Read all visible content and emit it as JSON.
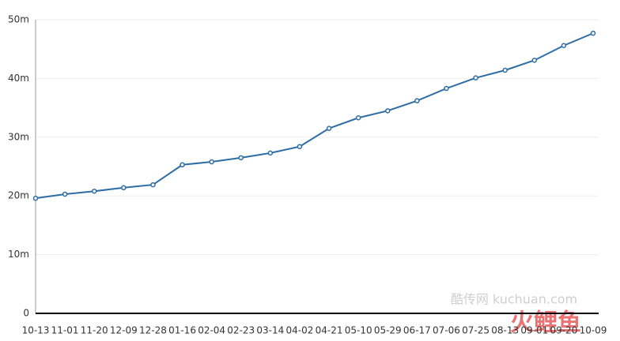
{
  "chart_data": {
    "type": "line",
    "categories": [
      "10-13",
      "11-01",
      "11-20",
      "12-09",
      "12-28",
      "01-16",
      "02-04",
      "02-23",
      "03-14",
      "04-02",
      "04-21",
      "05-10",
      "05-29",
      "06-17",
      "07-06",
      "07-25",
      "08-13",
      "09-01",
      "09-20",
      "10-09"
    ],
    "series": [
      {
        "color": "#2e6da4",
        "values": [
          19.6,
          20.3,
          20.8,
          21.4,
          21.9,
          25.3,
          25.8,
          26.5,
          27.3,
          28.4,
          31.5,
          33.3,
          34.5,
          36.2,
          38.3,
          40.1,
          41.4,
          43.1,
          45.6,
          47.7
        ]
      }
    ],
    "ylim": [
      0,
      50
    ],
    "yticks": [
      0,
      {
        "value": 10,
        "label": "10m"
      },
      {
        "value": 20,
        "label": "20m"
      },
      {
        "value": 30,
        "label": "30m"
      },
      {
        "value": 40,
        "label": "40m"
      },
      {
        "value": 50,
        "label": "50m"
      }
    ],
    "grid": true,
    "watermark": "酷传网 kuchuan.com",
    "logo": "火鲤鱼"
  }
}
